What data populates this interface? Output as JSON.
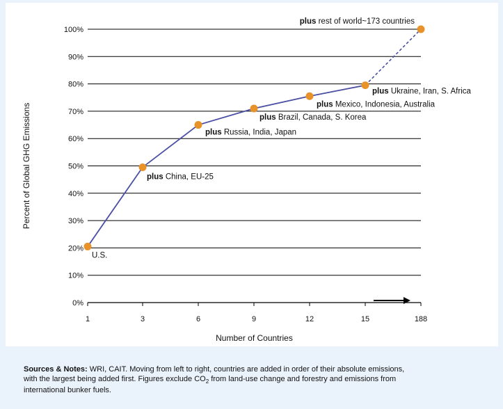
{
  "chart_data": {
    "type": "line",
    "ylabel": "Percent of Global GHG Emissions",
    "xlabel": "Number of Countries",
    "x": [
      "1",
      "3",
      "6",
      "9",
      "12",
      "15",
      "188"
    ],
    "values": [
      20.5,
      49.5,
      65,
      71,
      75.5,
      79.5,
      100
    ],
    "ylim": [
      0,
      100
    ],
    "yticks": [
      "0%",
      "10%",
      "20%",
      "30%",
      "40%",
      "50%",
      "60%",
      "70%",
      "80%",
      "90%",
      "100%"
    ],
    "grid": true,
    "last_segment_style": "dashed",
    "annotations": [
      {
        "bold": "",
        "text": "U.S."
      },
      {
        "bold": "plus",
        "text": "China, EU-25"
      },
      {
        "bold": "plus",
        "text": "Russia, India, Japan"
      },
      {
        "bold": "plus",
        "text": "Brazil, Canada, S. Korea"
      },
      {
        "bold": "plus",
        "text": "Mexico, Indonesia, Australia"
      },
      {
        "bold": "plus",
        "text": "Ukraine, Iran, S. Africa"
      },
      {
        "bold": "plus",
        "text": "rest of world~173 countries"
      }
    ],
    "line_color": "#4a4fa3",
    "marker_color": "#e8922a",
    "background": "#eaf2fb"
  },
  "notes": {
    "lead": "Sources & Notes:",
    "text_1": " WRI, CAIT. Moving from left to right, countries are added in order of their absolute emissions,",
    "text_2": "with the largest being added first. Figures exclude CO",
    "sub": "2",
    "text_3": " from land-use change and forestry and emissions from",
    "text_4": "international bunker fuels."
  }
}
